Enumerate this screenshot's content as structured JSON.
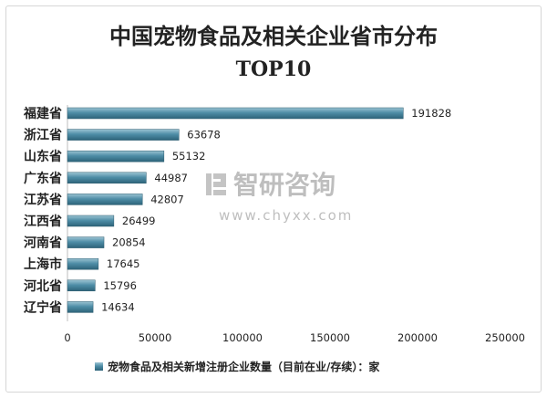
{
  "watermark": {
    "name": "智研咨询",
    "url": "www.chyxx.com"
  },
  "chart_data": {
    "type": "bar",
    "orientation": "horizontal",
    "title_line1": "中国宠物食品及相关企业省市分布",
    "title_line2": "TOP10",
    "categories": [
      "福建省",
      "浙江省",
      "山东省",
      "广东省",
      "江苏省",
      "江西省",
      "河南省",
      "上海市",
      "河北省",
      "辽宁省"
    ],
    "series": [
      {
        "name": "宠物食品及相关新增注册企业数量（目前在业/存续）：家",
        "values": [
          191828,
          63678,
          55132,
          44987,
          42807,
          26499,
          20854,
          17645,
          15796,
          14634
        ]
      }
    ],
    "xlim": [
      0,
      250000
    ],
    "xticks": [
      0,
      50000,
      100000,
      150000,
      200000,
      250000
    ],
    "grid": false,
    "legend_position": "bottom",
    "bar_color": "#3e7c95"
  }
}
